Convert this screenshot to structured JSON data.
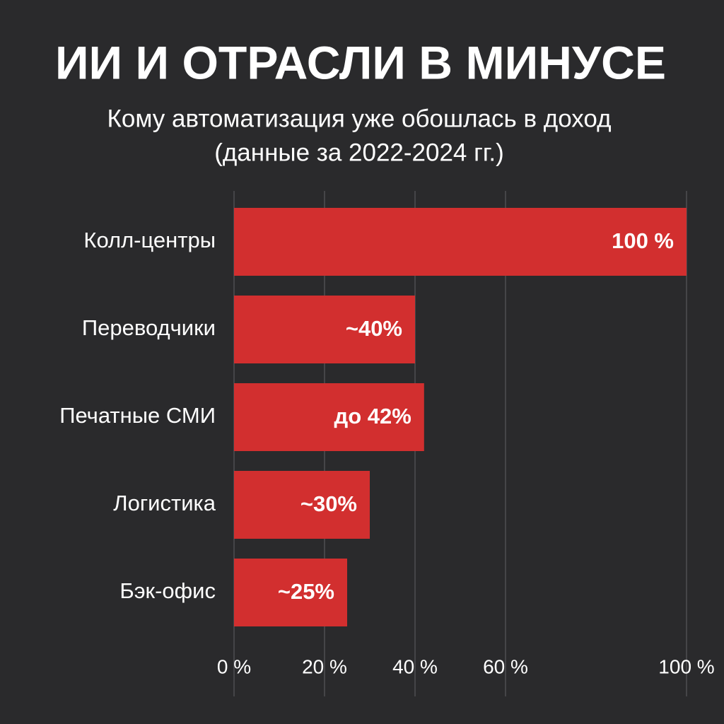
{
  "chart_data": {
    "type": "bar",
    "orientation": "horizontal",
    "title": "ИИ И ОТРАСЛИ В МИНУСЕ",
    "subtitle": [
      "Кому автоматизация уже обошлась в доход",
      "(данные за 2022-2024 гг.)"
    ],
    "categories": [
      "Колл-центры",
      "Переводчики",
      "Печатные СМИ",
      "Логистика",
      "Бэк-офис"
    ],
    "values": [
      100,
      40,
      42,
      30,
      25
    ],
    "value_labels": [
      "100 %",
      "~40%",
      "до 42%",
      "~30%",
      "~25%"
    ],
    "color": "#d22f2f",
    "xlim": [
      0,
      100
    ],
    "xticks": [
      {
        "value": 0,
        "label": "0 %"
      },
      {
        "value": 20,
        "label": "20 %"
      },
      {
        "value": 40,
        "label": "40 %"
      },
      {
        "value": 60,
        "label": "60 %"
      },
      {
        "value": 100,
        "label": "100 %"
      }
    ],
    "grid": true
  }
}
